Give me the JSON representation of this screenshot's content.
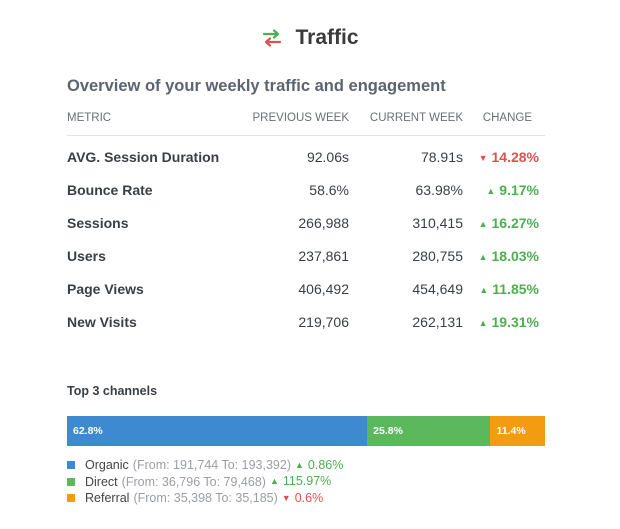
{
  "header": {
    "title": "Traffic",
    "icon": "swap-arrows-icon"
  },
  "subtitle": "Overview of your weekly traffic and engagement",
  "table": {
    "columns": {
      "metric": "METRIC",
      "previous": "PREVIOUS WEEK",
      "current": "CURRENT WEEK",
      "change": "CHANGE"
    },
    "rows": [
      {
        "name": "AVG. Session Duration",
        "previous": "92.06s",
        "current": "78.91s",
        "change": "14.28%",
        "direction": "down"
      },
      {
        "name": "Bounce Rate",
        "previous": "58.6%",
        "current": "63.98%",
        "change": "9.17%",
        "direction": "up"
      },
      {
        "name": "Sessions",
        "previous": "266,988",
        "current": "310,415",
        "change": "16.27%",
        "direction": "up"
      },
      {
        "name": "Users",
        "previous": "237,861",
        "current": "280,755",
        "change": "18.03%",
        "direction": "up"
      },
      {
        "name": "Page Views",
        "previous": "406,492",
        "current": "454,649",
        "change": "11.85%",
        "direction": "up"
      },
      {
        "name": "New Visits",
        "previous": "219,706",
        "current": "262,131",
        "change": "19.31%",
        "direction": "up"
      }
    ]
  },
  "channels": {
    "title": "Top 3 channels",
    "items": [
      {
        "name": "Organic",
        "share": 62.8,
        "share_label": "62.8%",
        "range": "(From: 191,744 To: 193,392)",
        "change": "0.86%",
        "direction": "up",
        "color": "#3d8ad0"
      },
      {
        "name": "Direct",
        "share": 25.8,
        "share_label": "25.8%",
        "range": "(From: 36,796 To: 79,468)",
        "change": "115.97%",
        "direction": "up",
        "color": "#5cb85c"
      },
      {
        "name": "Referral",
        "share": 11.4,
        "share_label": "11.4%",
        "range": "(From: 35,398 To: 35,185)",
        "change": "0.6%",
        "direction": "down",
        "color": "#f39c12"
      }
    ]
  },
  "colors": {
    "up": "#4caf50",
    "down": "#d9534f"
  }
}
